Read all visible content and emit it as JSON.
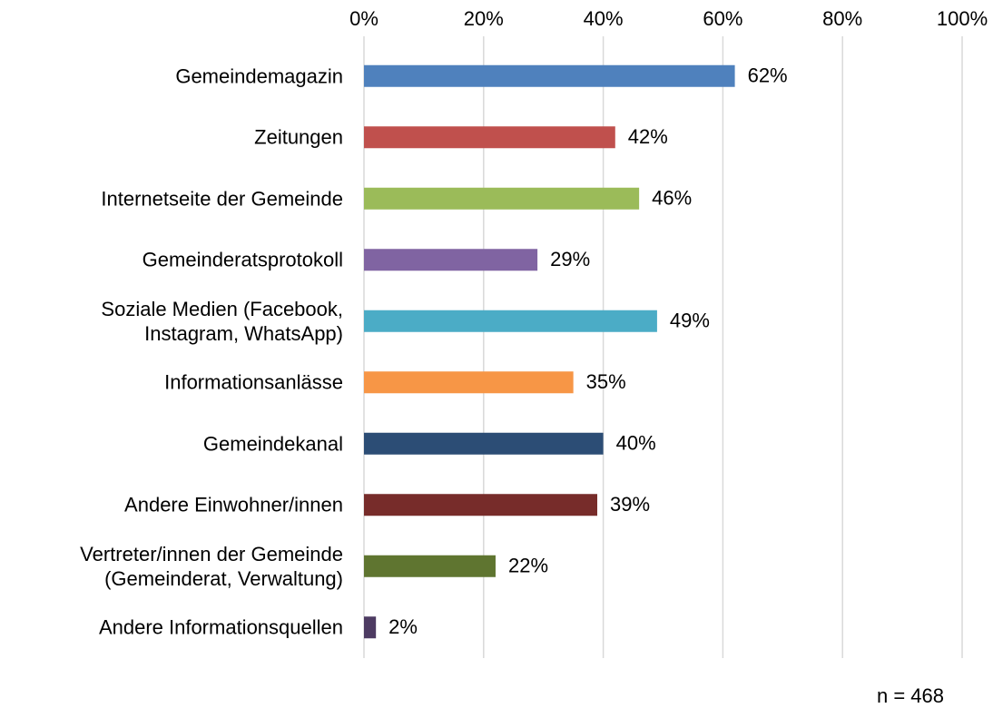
{
  "chart_data": {
    "type": "bar",
    "orientation": "horizontal",
    "categories": [
      "Gemeindemagazin",
      "Zeitungen",
      "Internetseite der Gemeinde",
      "Gemeinderatsprotokoll",
      "Soziale Medien (Facebook,\nInstagram, WhatsApp)",
      "Informationsanlässe",
      "Gemeindekanal",
      "Andere Einwohner/innen",
      "Vertreter/innen der Gemeinde\n(Gemeinderat, Verwaltung)",
      "Andere Informationsquellen"
    ],
    "values": [
      62,
      42,
      46,
      29,
      49,
      35,
      40,
      39,
      22,
      2
    ],
    "value_labels": [
      "62%",
      "42%",
      "46%",
      "29%",
      "49%",
      "35%",
      "40%",
      "39%",
      "22%",
      "2%"
    ],
    "colors": [
      "#4f81bd",
      "#c0504d",
      "#9bbb59",
      "#8064a2",
      "#4bacc6",
      "#f79646",
      "#2c4d75",
      "#772c2a",
      "#5f7530",
      "#4d3b62"
    ],
    "xlim": [
      0,
      100
    ],
    "xticks": [
      {
        "value": 0,
        "label": "0%"
      },
      {
        "value": 20,
        "label": "20%"
      },
      {
        "value": 40,
        "label": "40%"
      },
      {
        "value": 60,
        "label": "60%"
      },
      {
        "value": 80,
        "label": "80%"
      },
      {
        "value": 100,
        "label": "100%"
      }
    ],
    "grid": true,
    "annotation": "n = 468"
  }
}
